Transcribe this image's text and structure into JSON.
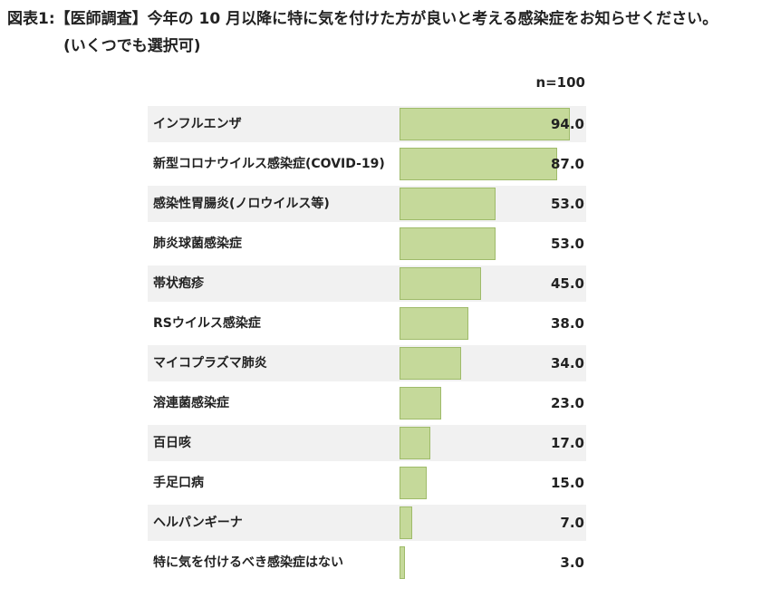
{
  "title_line1": "図表1:【医師調査】今年の 10 月以降に特に気を付けた方が良いと考える感染症をお知らせください。",
  "title_line2": "(いくつでも選択可)",
  "sample_size": "n=100",
  "colors": {
    "bar": "#c5d99a",
    "bar_border": "#9fbb6a",
    "row_shade": "#f1f1f1"
  },
  "chart_data": {
    "type": "bar",
    "orientation": "horizontal",
    "xlim": [
      0,
      100
    ],
    "categories": [
      "インフルエンザ",
      "新型コロナウイルス感染症(COVID-19)",
      "感染性胃腸炎(ノロウイルス等)",
      "肺炎球菌感染症",
      "帯状疱疹",
      "RSウイルス感染症",
      "マイコプラズマ肺炎",
      "溶連菌感染症",
      "百日咳",
      "手足口病",
      "ヘルパンギーナ",
      "特に気を付けるべき感染症はない"
    ],
    "values": [
      94.0,
      87.0,
      53.0,
      53.0,
      45.0,
      38.0,
      34.0,
      23.0,
      17.0,
      15.0,
      7.0,
      3.0
    ],
    "value_labels": [
      "94.0",
      "87.0",
      "53.0",
      "53.0",
      "45.0",
      "38.0",
      "34.0",
      "23.0",
      "17.0",
      "15.0",
      "7.0",
      "3.0"
    ]
  }
}
